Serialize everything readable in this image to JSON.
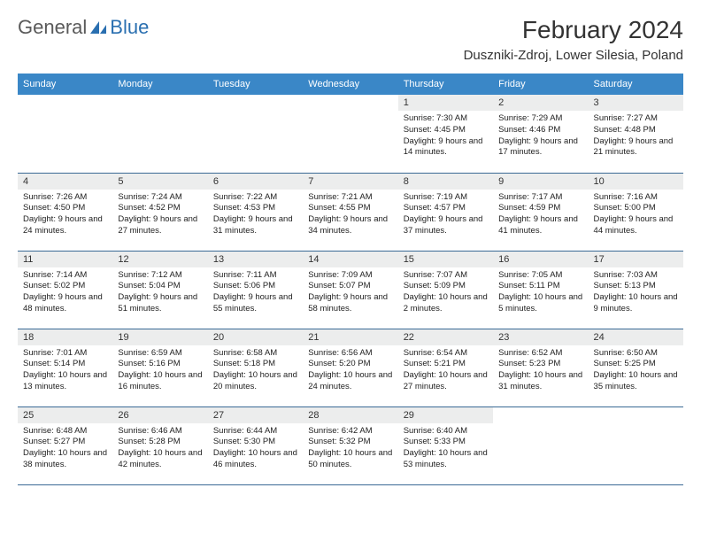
{
  "logo": {
    "text1": "General",
    "text2": "Blue"
  },
  "title": "February 2024",
  "location": "Duszniki-Zdroj, Lower Silesia, Poland",
  "colors": {
    "header_bg": "#3a87c7",
    "header_text": "#ffffff",
    "daynum_bg": "#eceded",
    "border": "#3a6a95",
    "logo_gray": "#5a5a5a",
    "logo_blue": "#2a6fb0",
    "text": "#222222"
  },
  "day_names": [
    "Sunday",
    "Monday",
    "Tuesday",
    "Wednesday",
    "Thursday",
    "Friday",
    "Saturday"
  ],
  "weeks": [
    [
      {
        "n": "",
        "sr": "",
        "ss": "",
        "dl": ""
      },
      {
        "n": "",
        "sr": "",
        "ss": "",
        "dl": ""
      },
      {
        "n": "",
        "sr": "",
        "ss": "",
        "dl": ""
      },
      {
        "n": "",
        "sr": "",
        "ss": "",
        "dl": ""
      },
      {
        "n": "1",
        "sr": "Sunrise: 7:30 AM",
        "ss": "Sunset: 4:45 PM",
        "dl": "Daylight: 9 hours and 14 minutes."
      },
      {
        "n": "2",
        "sr": "Sunrise: 7:29 AM",
        "ss": "Sunset: 4:46 PM",
        "dl": "Daylight: 9 hours and 17 minutes."
      },
      {
        "n": "3",
        "sr": "Sunrise: 7:27 AM",
        "ss": "Sunset: 4:48 PM",
        "dl": "Daylight: 9 hours and 21 minutes."
      }
    ],
    [
      {
        "n": "4",
        "sr": "Sunrise: 7:26 AM",
        "ss": "Sunset: 4:50 PM",
        "dl": "Daylight: 9 hours and 24 minutes."
      },
      {
        "n": "5",
        "sr": "Sunrise: 7:24 AM",
        "ss": "Sunset: 4:52 PM",
        "dl": "Daylight: 9 hours and 27 minutes."
      },
      {
        "n": "6",
        "sr": "Sunrise: 7:22 AM",
        "ss": "Sunset: 4:53 PM",
        "dl": "Daylight: 9 hours and 31 minutes."
      },
      {
        "n": "7",
        "sr": "Sunrise: 7:21 AM",
        "ss": "Sunset: 4:55 PM",
        "dl": "Daylight: 9 hours and 34 minutes."
      },
      {
        "n": "8",
        "sr": "Sunrise: 7:19 AM",
        "ss": "Sunset: 4:57 PM",
        "dl": "Daylight: 9 hours and 37 minutes."
      },
      {
        "n": "9",
        "sr": "Sunrise: 7:17 AM",
        "ss": "Sunset: 4:59 PM",
        "dl": "Daylight: 9 hours and 41 minutes."
      },
      {
        "n": "10",
        "sr": "Sunrise: 7:16 AM",
        "ss": "Sunset: 5:00 PM",
        "dl": "Daylight: 9 hours and 44 minutes."
      }
    ],
    [
      {
        "n": "11",
        "sr": "Sunrise: 7:14 AM",
        "ss": "Sunset: 5:02 PM",
        "dl": "Daylight: 9 hours and 48 minutes."
      },
      {
        "n": "12",
        "sr": "Sunrise: 7:12 AM",
        "ss": "Sunset: 5:04 PM",
        "dl": "Daylight: 9 hours and 51 minutes."
      },
      {
        "n": "13",
        "sr": "Sunrise: 7:11 AM",
        "ss": "Sunset: 5:06 PM",
        "dl": "Daylight: 9 hours and 55 minutes."
      },
      {
        "n": "14",
        "sr": "Sunrise: 7:09 AM",
        "ss": "Sunset: 5:07 PM",
        "dl": "Daylight: 9 hours and 58 minutes."
      },
      {
        "n": "15",
        "sr": "Sunrise: 7:07 AM",
        "ss": "Sunset: 5:09 PM",
        "dl": "Daylight: 10 hours and 2 minutes."
      },
      {
        "n": "16",
        "sr": "Sunrise: 7:05 AM",
        "ss": "Sunset: 5:11 PM",
        "dl": "Daylight: 10 hours and 5 minutes."
      },
      {
        "n": "17",
        "sr": "Sunrise: 7:03 AM",
        "ss": "Sunset: 5:13 PM",
        "dl": "Daylight: 10 hours and 9 minutes."
      }
    ],
    [
      {
        "n": "18",
        "sr": "Sunrise: 7:01 AM",
        "ss": "Sunset: 5:14 PM",
        "dl": "Daylight: 10 hours and 13 minutes."
      },
      {
        "n": "19",
        "sr": "Sunrise: 6:59 AM",
        "ss": "Sunset: 5:16 PM",
        "dl": "Daylight: 10 hours and 16 minutes."
      },
      {
        "n": "20",
        "sr": "Sunrise: 6:58 AM",
        "ss": "Sunset: 5:18 PM",
        "dl": "Daylight: 10 hours and 20 minutes."
      },
      {
        "n": "21",
        "sr": "Sunrise: 6:56 AM",
        "ss": "Sunset: 5:20 PM",
        "dl": "Daylight: 10 hours and 24 minutes."
      },
      {
        "n": "22",
        "sr": "Sunrise: 6:54 AM",
        "ss": "Sunset: 5:21 PM",
        "dl": "Daylight: 10 hours and 27 minutes."
      },
      {
        "n": "23",
        "sr": "Sunrise: 6:52 AM",
        "ss": "Sunset: 5:23 PM",
        "dl": "Daylight: 10 hours and 31 minutes."
      },
      {
        "n": "24",
        "sr": "Sunrise: 6:50 AM",
        "ss": "Sunset: 5:25 PM",
        "dl": "Daylight: 10 hours and 35 minutes."
      }
    ],
    [
      {
        "n": "25",
        "sr": "Sunrise: 6:48 AM",
        "ss": "Sunset: 5:27 PM",
        "dl": "Daylight: 10 hours and 38 minutes."
      },
      {
        "n": "26",
        "sr": "Sunrise: 6:46 AM",
        "ss": "Sunset: 5:28 PM",
        "dl": "Daylight: 10 hours and 42 minutes."
      },
      {
        "n": "27",
        "sr": "Sunrise: 6:44 AM",
        "ss": "Sunset: 5:30 PM",
        "dl": "Daylight: 10 hours and 46 minutes."
      },
      {
        "n": "28",
        "sr": "Sunrise: 6:42 AM",
        "ss": "Sunset: 5:32 PM",
        "dl": "Daylight: 10 hours and 50 minutes."
      },
      {
        "n": "29",
        "sr": "Sunrise: 6:40 AM",
        "ss": "Sunset: 5:33 PM",
        "dl": "Daylight: 10 hours and 53 minutes."
      },
      {
        "n": "",
        "sr": "",
        "ss": "",
        "dl": ""
      },
      {
        "n": "",
        "sr": "",
        "ss": "",
        "dl": ""
      }
    ]
  ]
}
